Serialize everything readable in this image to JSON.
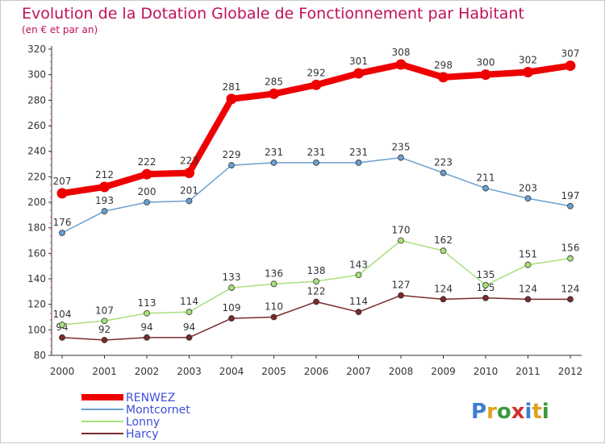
{
  "chart_data": {
    "type": "line",
    "title": "Evolution de la Dotation Globale de Fonctionnement par Habitant",
    "subtitle": "(en € et par an)",
    "xlabel": "",
    "ylabel": "",
    "x": [
      "2000",
      "2001",
      "2002",
      "2003",
      "2004",
      "2005",
      "2006",
      "2007",
      "2008",
      "2009",
      "2010",
      "2011",
      "2012"
    ],
    "ylim": [
      80,
      320
    ],
    "yticks": [
      80,
      100,
      120,
      140,
      160,
      180,
      200,
      220,
      240,
      260,
      280,
      300,
      320
    ],
    "grid": false,
    "legend_position": "bottom-left",
    "series": [
      {
        "name": "RENWEZ",
        "color": "#ee0000",
        "values": [
          207,
          212,
          222,
          223,
          281,
          285,
          292,
          301,
          308,
          298,
          300,
          302,
          307
        ]
      },
      {
        "name": "Montcornet",
        "color": "#6a9fd0",
        "values": [
          176,
          193,
          200,
          201,
          229,
          231,
          231,
          231,
          235,
          223,
          211,
          203,
          197
        ]
      },
      {
        "name": "Lonny",
        "color": "#a8e07a",
        "values": [
          104,
          107,
          113,
          114,
          133,
          136,
          138,
          143,
          170,
          162,
          135,
          151,
          156
        ]
      },
      {
        "name": "Harcy",
        "color": "#7a2a2a",
        "values": [
          94,
          92,
          94,
          94,
          109,
          110,
          122,
          114,
          127,
          124,
          125,
          124,
          124
        ]
      }
    ]
  },
  "branding": {
    "logo": "Proxiti"
  }
}
